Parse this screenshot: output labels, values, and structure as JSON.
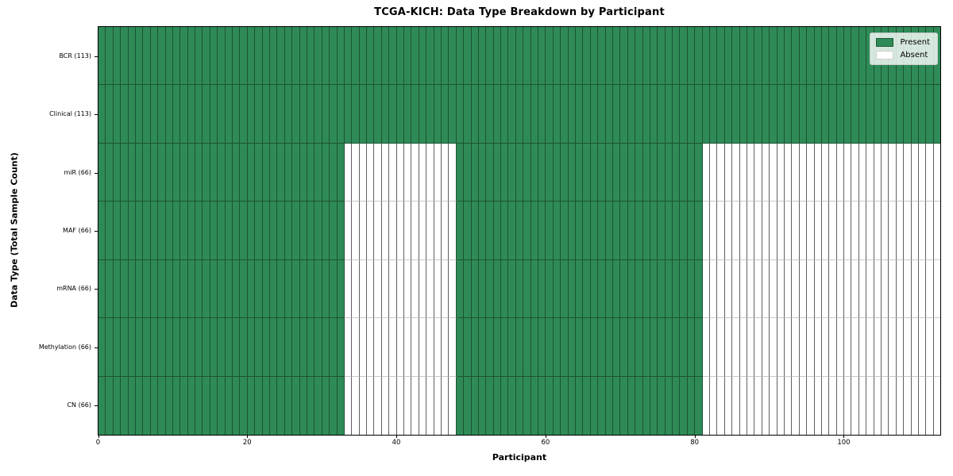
{
  "chart_data": {
    "type": "heatmap",
    "title": "TCGA-KICH: Data Type Breakdown by Participant",
    "xlabel": "Participant",
    "ylabel": "Data Type (Total Sample Count)",
    "n_participants": 113,
    "xlim": [
      0,
      113
    ],
    "x_ticks": [
      0,
      20,
      40,
      60,
      80,
      100
    ],
    "grid": false,
    "legend_position": "upper right",
    "rows": [
      {
        "label": "BCR (113)",
        "present_count": 113,
        "present_ranges": [
          [
            0,
            112
          ]
        ]
      },
      {
        "label": "Clinical (113)",
        "present_count": 113,
        "present_ranges": [
          [
            0,
            112
          ]
        ]
      },
      {
        "label": "miR (66)",
        "present_count": 66,
        "present_ranges": [
          [
            0,
            32
          ],
          [
            48,
            80
          ]
        ]
      },
      {
        "label": "MAF (66)",
        "present_count": 66,
        "present_ranges": [
          [
            0,
            32
          ],
          [
            48,
            80
          ]
        ]
      },
      {
        "label": "mRNA (66)",
        "present_count": 66,
        "present_ranges": [
          [
            0,
            32
          ],
          [
            48,
            80
          ]
        ]
      },
      {
        "label": "Methylation (66)",
        "present_count": 66,
        "present_ranges": [
          [
            0,
            32
          ],
          [
            48,
            80
          ]
        ]
      },
      {
        "label": "CN (66)",
        "present_count": 66,
        "present_ranges": [
          [
            0,
            32
          ],
          [
            48,
            80
          ]
        ]
      }
    ],
    "legend": [
      {
        "label": "Present",
        "color": "#2e8b57"
      },
      {
        "label": "Absent",
        "color": "#ffffff"
      }
    ],
    "colors": {
      "present": "#2e8b57",
      "absent": "#ffffff",
      "present_edge": "#1d5334",
      "absent_edge_vertical": "#616161",
      "absent_edge_horizontal": "#c8c8c8",
      "frame": "#000000",
      "legend_border": "#cccccc",
      "text": "#000000"
    }
  }
}
